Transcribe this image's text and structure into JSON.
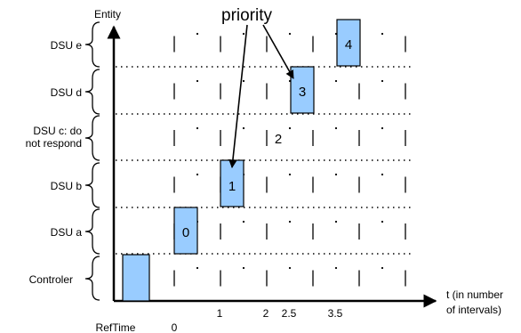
{
  "entity_label": "Entity",
  "priority_label": "priority",
  "time_axis_label": [
    "t (in number",
    "of intervals)"
  ],
  "rows": [
    {
      "label": [
        "DSU e"
      ],
      "box": "4"
    },
    {
      "label": [
        "DSU d"
      ],
      "box": "3"
    },
    {
      "label": [
        "DSU c: do",
        "not respond"
      ],
      "box": "2"
    },
    {
      "label": [
        "DSU b"
      ],
      "box": "1"
    },
    {
      "label": [
        "DSU a"
      ],
      "box": "0"
    },
    {
      "label": [
        "Controler"
      ],
      "box": ""
    }
  ],
  "time_ticks": [
    "RefTime",
    "0",
    "1",
    "2",
    "2.5",
    "3.5"
  ],
  "colors": {
    "box_fill": "#99ccff",
    "line": "#000000"
  }
}
